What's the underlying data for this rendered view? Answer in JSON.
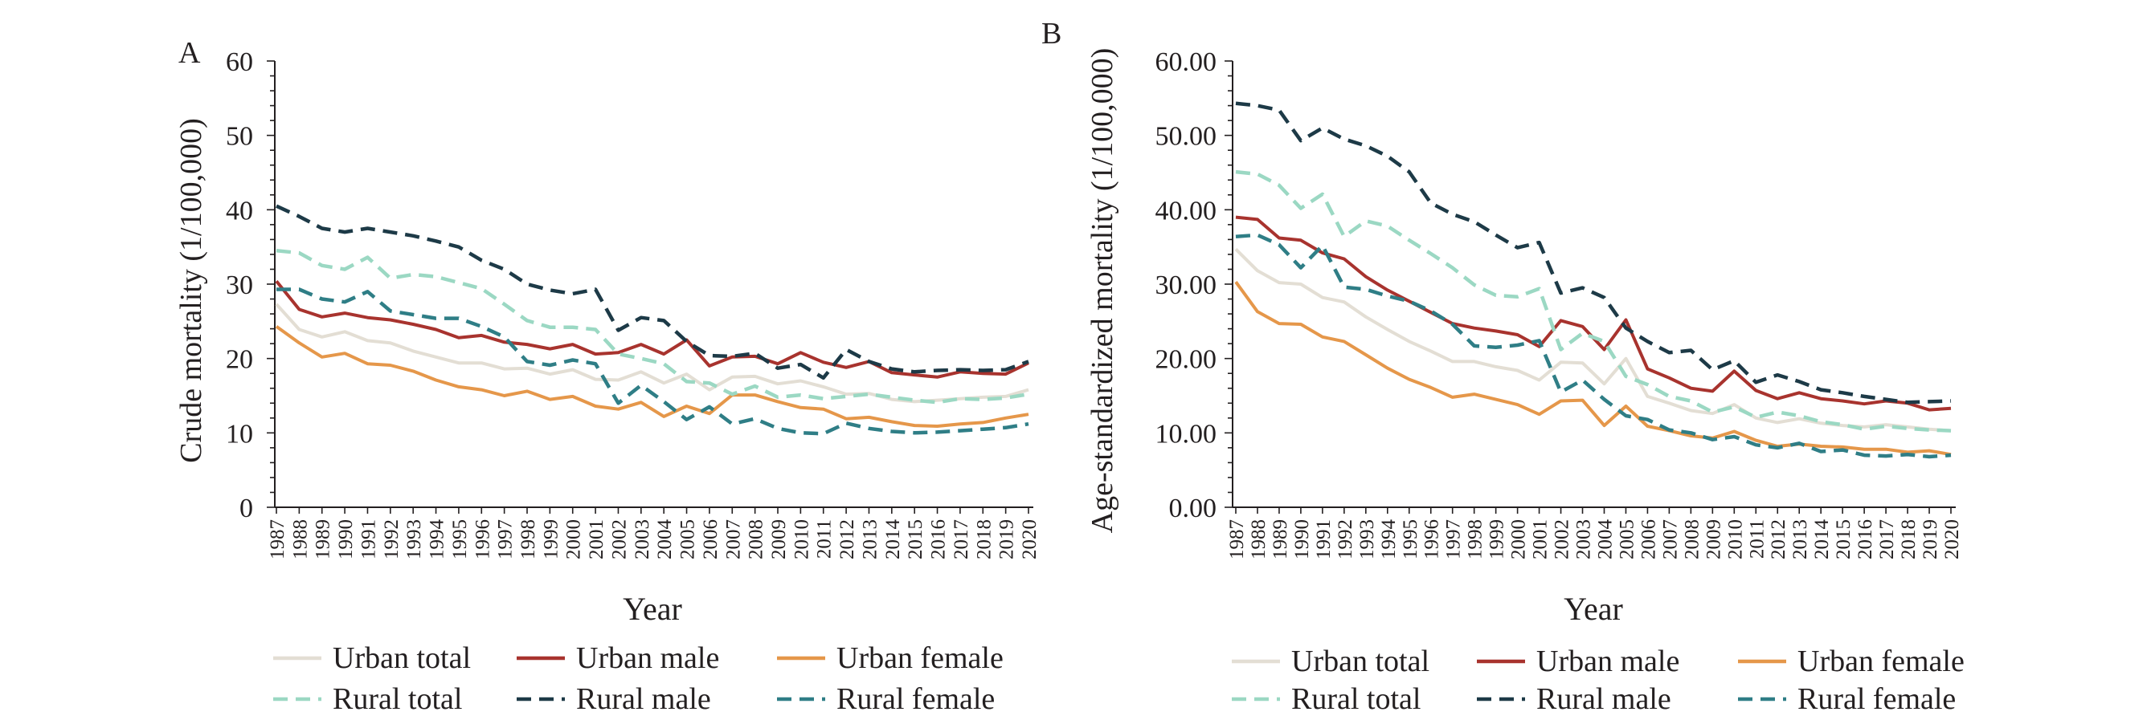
{
  "chart_data": [
    {
      "type": "line",
      "panel_label": "A",
      "xlabel": "Year",
      "ylabel": "Crude mortality (1/100,000)",
      "ylim": [
        0,
        60
      ],
      "y_ticks": [
        "0",
        "10",
        "20",
        "30",
        "40",
        "50",
        "60"
      ],
      "x": [
        "1987",
        "1988",
        "1989",
        "1990",
        "1991",
        "1992",
        "1993",
        "1994",
        "1995",
        "1996",
        "1997",
        "1998",
        "1999",
        "2000",
        "2001",
        "2002",
        "2003",
        "2004",
        "2005",
        "2006",
        "2007",
        "2008",
        "2009",
        "2010",
        "2011",
        "2012",
        "2013",
        "2014",
        "2015",
        "2016",
        "2017",
        "2018",
        "2019",
        "2020"
      ],
      "series": [
        {
          "name": "Urban total",
          "values": [
            27.3,
            23.9,
            22.9,
            23.6,
            22.4,
            22.1,
            21.0,
            20.2,
            19.4,
            19.4,
            18.6,
            18.7,
            17.9,
            18.5,
            17.2,
            17.1,
            18.2,
            16.7,
            17.9,
            15.8,
            17.5,
            17.6,
            16.6,
            17.0,
            16.2,
            15.2,
            15.3,
            14.5,
            14.2,
            14.4,
            14.6,
            14.8,
            14.9,
            15.8
          ]
        },
        {
          "name": "Urban male",
          "values": [
            30.4,
            26.6,
            25.6,
            26.1,
            25.5,
            25.2,
            24.6,
            23.9,
            22.8,
            23.1,
            22.2,
            21.9,
            21.3,
            21.9,
            20.6,
            20.8,
            21.9,
            20.6,
            22.5,
            19.0,
            20.2,
            20.3,
            19.3,
            20.8,
            19.5,
            18.8,
            19.6,
            18.1,
            17.8,
            17.5,
            18.2,
            18.0,
            17.9,
            19.4
          ]
        },
        {
          "name": "Urban female",
          "values": [
            24.3,
            22.1,
            20.2,
            20.7,
            19.3,
            19.1,
            18.3,
            17.1,
            16.2,
            15.8,
            15.0,
            15.6,
            14.5,
            14.9,
            13.6,
            13.2,
            14.1,
            12.2,
            13.6,
            12.6,
            15.1,
            15.1,
            14.2,
            13.4,
            13.2,
            11.9,
            12.1,
            11.5,
            11.0,
            10.9,
            11.2,
            11.4,
            12.0,
            12.5
          ]
        },
        {
          "name": "Rural total",
          "values": [
            34.5,
            34.2,
            32.5,
            32.0,
            33.6,
            30.8,
            31.3,
            31.0,
            30.2,
            29.4,
            27.3,
            25.1,
            24.2,
            24.2,
            23.9,
            20.6,
            20.0,
            19.3,
            16.9,
            16.7,
            15.2,
            16.3,
            14.8,
            15.1,
            14.6,
            14.9,
            15.2,
            14.8,
            14.4,
            14.1,
            14.6,
            14.5,
            14.7,
            15.2
          ]
        },
        {
          "name": "Rural male",
          "values": [
            40.5,
            39.1,
            37.5,
            37.0,
            37.5,
            37.0,
            36.5,
            35.8,
            35.0,
            33.2,
            32.0,
            30.0,
            29.2,
            28.7,
            29.3,
            23.8,
            25.5,
            25.1,
            22.3,
            20.4,
            20.3,
            20.7,
            18.7,
            19.2,
            17.4,
            21.2,
            19.6,
            18.6,
            18.2,
            18.4,
            18.5,
            18.4,
            18.5,
            19.6
          ]
        },
        {
          "name": "Rural female",
          "values": [
            29.3,
            29.3,
            28.0,
            27.6,
            29.0,
            26.4,
            25.9,
            25.4,
            25.4,
            24.3,
            22.9,
            19.6,
            19.1,
            19.8,
            19.3,
            14.0,
            16.4,
            14.2,
            11.8,
            13.5,
            11.2,
            11.9,
            10.6,
            10.0,
            9.9,
            11.3,
            10.6,
            10.2,
            10.0,
            10.1,
            10.3,
            10.5,
            10.7,
            11.2
          ]
        }
      ],
      "legend": [
        {
          "label": "Urban total",
          "color": "#e3ded4",
          "dash": false
        },
        {
          "label": "Urban male",
          "color": "#a8332e",
          "dash": false
        },
        {
          "label": "Urban female",
          "color": "#e5974a",
          "dash": false
        },
        {
          "label": "Rural total",
          "color": "#9bd8c3",
          "dash": true
        },
        {
          "label": "Rural male",
          "color": "#1d3a47",
          "dash": true
        },
        {
          "label": "Rural female",
          "color": "#2f7e86",
          "dash": true
        }
      ]
    },
    {
      "type": "line",
      "panel_label": "B",
      "xlabel": "Year",
      "ylabel": "Age-standardized mortality (1/100,000)",
      "ylim": [
        0,
        60
      ],
      "y_ticks": [
        "0.00",
        "10.00",
        "20.00",
        "30.00",
        "40.00",
        "50.00",
        "60.00"
      ],
      "x": [
        "1987",
        "1988",
        "1989",
        "1990",
        "1991",
        "1992",
        "1993",
        "1994",
        "1995",
        "1996",
        "1997",
        "1998",
        "1999",
        "2000",
        "2001",
        "2002",
        "2003",
        "2004",
        "2005",
        "2006",
        "2007",
        "2008",
        "2009",
        "2010",
        "2011",
        "2012",
        "2013",
        "2014",
        "2015",
        "2016",
        "2017",
        "2018",
        "2019",
        "2020"
      ],
      "series": [
        {
          "name": "Urban total",
          "values": [
            34.7,
            31.8,
            30.2,
            30.0,
            28.2,
            27.6,
            25.6,
            23.9,
            22.3,
            21.0,
            19.6,
            19.6,
            18.9,
            18.4,
            17.1,
            19.5,
            19.4,
            16.6,
            20.0,
            14.9,
            14.0,
            13.0,
            12.6,
            13.8,
            12.0,
            11.4,
            11.9,
            11.3,
            11.0,
            10.8,
            11.1,
            10.8,
            10.5,
            10.3
          ]
        },
        {
          "name": "Urban male",
          "values": [
            39.0,
            38.7,
            36.2,
            35.9,
            34.2,
            33.4,
            31.0,
            29.2,
            27.7,
            26.2,
            24.7,
            24.1,
            23.7,
            23.2,
            21.6,
            25.1,
            24.3,
            21.2,
            25.2,
            18.6,
            17.4,
            16.0,
            15.6,
            18.3,
            15.7,
            14.6,
            15.4,
            14.6,
            14.3,
            13.9,
            14.3,
            14.0,
            13.1,
            13.3
          ]
        },
        {
          "name": "Urban female",
          "values": [
            30.3,
            26.3,
            24.7,
            24.6,
            22.9,
            22.3,
            20.5,
            18.7,
            17.2,
            16.1,
            14.8,
            15.2,
            14.5,
            13.8,
            12.5,
            14.3,
            14.4,
            11.0,
            13.6,
            10.9,
            10.3,
            9.6,
            9.3,
            10.2,
            9.0,
            8.2,
            8.5,
            8.2,
            8.1,
            7.8,
            7.8,
            7.4,
            7.6,
            7.1
          ]
        },
        {
          "name": "Rural total",
          "values": [
            45.1,
            44.8,
            43.3,
            40.2,
            42.1,
            36.4,
            38.5,
            37.8,
            35.9,
            34.1,
            32.2,
            29.9,
            28.5,
            28.3,
            29.4,
            21.2,
            23.4,
            22.3,
            17.6,
            16.5,
            14.9,
            14.3,
            12.8,
            13.5,
            12.1,
            12.8,
            12.3,
            11.5,
            11.1,
            10.5,
            10.9,
            10.6,
            10.4,
            10.3
          ]
        },
        {
          "name": "Rural male",
          "values": [
            54.3,
            54.0,
            53.4,
            49.3,
            51.0,
            49.5,
            48.6,
            47.2,
            45.1,
            40.9,
            39.4,
            38.4,
            36.6,
            34.9,
            35.6,
            28.8,
            29.5,
            28.2,
            24.1,
            22.3,
            20.8,
            21.1,
            18.5,
            19.7,
            16.8,
            17.8,
            16.9,
            15.8,
            15.4,
            14.9,
            14.5,
            14.1,
            14.2,
            14.3
          ]
        },
        {
          "name": "Rural female",
          "values": [
            36.4,
            36.6,
            35.3,
            32.2,
            35.2,
            29.6,
            29.3,
            28.4,
            27.7,
            26.4,
            24.6,
            21.7,
            21.5,
            21.8,
            22.4,
            15.5,
            17.1,
            14.5,
            12.3,
            11.8,
            10.4,
            10.0,
            9.1,
            9.5,
            8.4,
            8.0,
            8.6,
            7.5,
            7.7,
            7.0,
            6.9,
            7.1,
            6.8,
            7.0
          ]
        }
      ],
      "legend": [
        {
          "label": "Urban total",
          "color": "#e3ded4",
          "dash": false
        },
        {
          "label": "Urban male",
          "color": "#a8332e",
          "dash": false
        },
        {
          "label": "Urban female",
          "color": "#e5974a",
          "dash": false
        },
        {
          "label": "Rural total",
          "color": "#9bd8c3",
          "dash": true
        },
        {
          "label": "Rural male",
          "color": "#1d3a47",
          "dash": true
        },
        {
          "label": "Rural female",
          "color": "#2f7e86",
          "dash": true
        }
      ]
    }
  ]
}
